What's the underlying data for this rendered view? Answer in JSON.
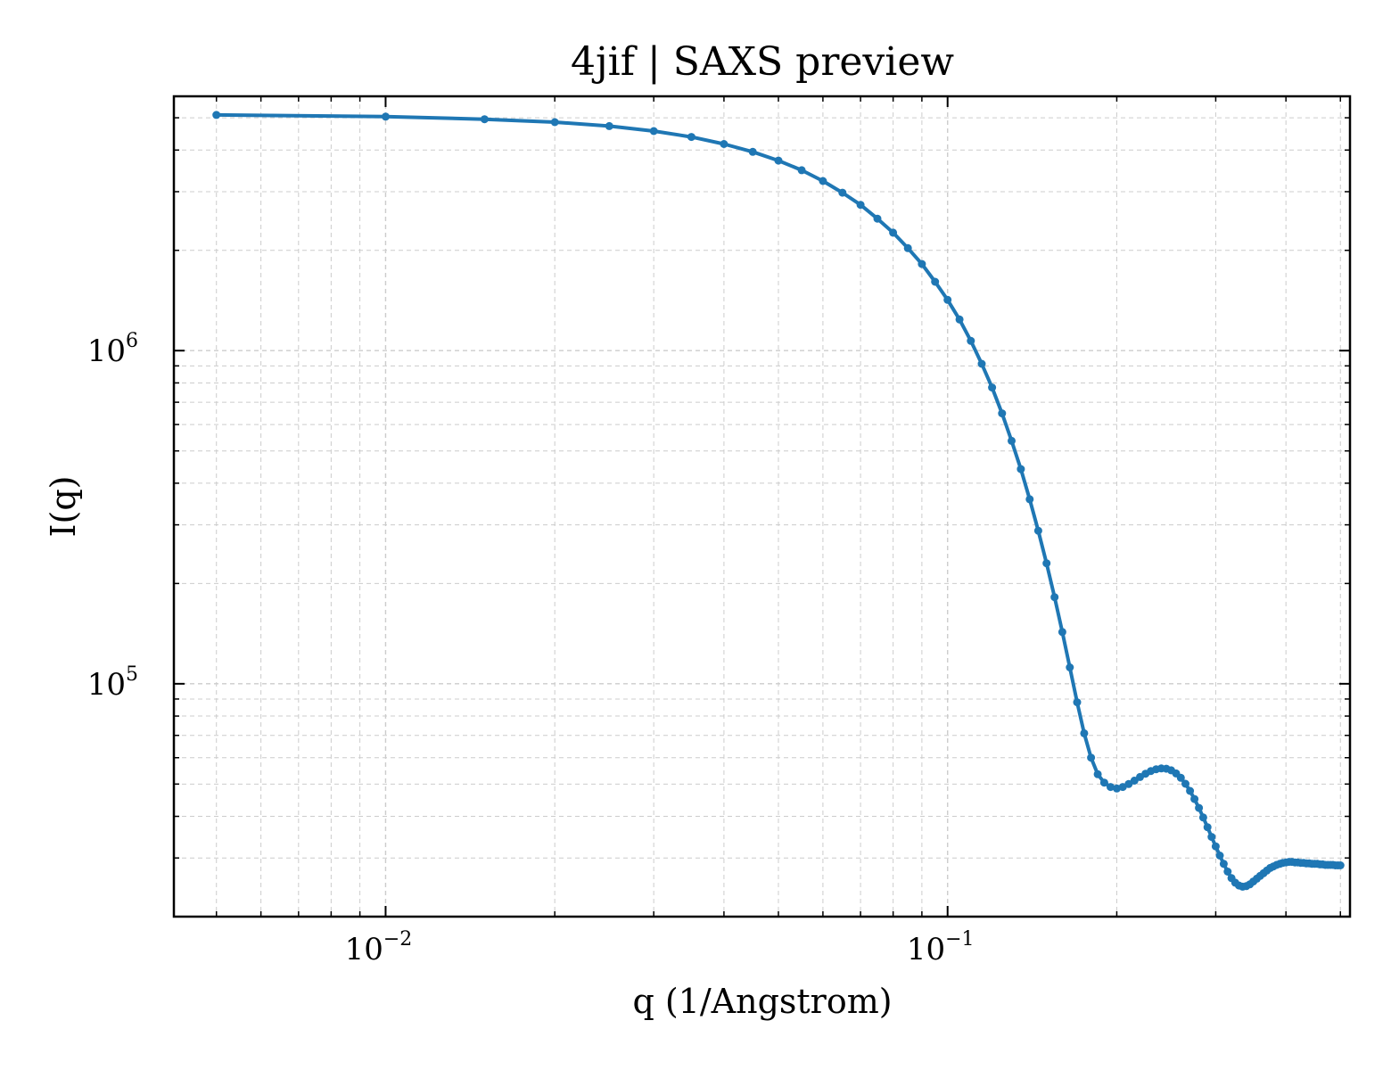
{
  "chart_data": {
    "type": "line",
    "title": "4jif | SAXS preview",
    "xlabel": "q (1/Angstrom)",
    "ylabel": "I(q)",
    "x_scale": "log",
    "y_scale": "log",
    "xlim": [
      0.0042,
      0.52
    ],
    "ylim": [
      20000,
      5800000
    ],
    "x_ticks": [
      {
        "value": 0.01,
        "base": "10",
        "exp": "−2"
      },
      {
        "value": 0.1,
        "base": "10",
        "exp": "−1"
      }
    ],
    "y_ticks": [
      {
        "value": 100000,
        "base": "10",
        "exp": "5"
      },
      {
        "value": 1000000,
        "base": "10",
        "exp": "6"
      }
    ],
    "grid": true,
    "legend": "none",
    "colors": {
      "line": "#1f77b4",
      "grid": "#cccccc",
      "axes": "#000000"
    },
    "series": [
      {
        "marker": "dot",
        "x": [
          0.005,
          0.01,
          0.015,
          0.02,
          0.025,
          0.03,
          0.035,
          0.04,
          0.045,
          0.05,
          0.055,
          0.06,
          0.065,
          0.07,
          0.075,
          0.08,
          0.085,
          0.09,
          0.095,
          0.1,
          0.105,
          0.11,
          0.115,
          0.12,
          0.125,
          0.13,
          0.135,
          0.14,
          0.145,
          0.15,
          0.155,
          0.16,
          0.165,
          0.17,
          0.175,
          0.18,
          0.185,
          0.19,
          0.195,
          0.2,
          0.205,
          0.21,
          0.215,
          0.22,
          0.225,
          0.23,
          0.235,
          0.24,
          0.245,
          0.25,
          0.255,
          0.26,
          0.265,
          0.27,
          0.275,
          0.28,
          0.285,
          0.29,
          0.295,
          0.3,
          0.305,
          0.31,
          0.315,
          0.32,
          0.325,
          0.33,
          0.335,
          0.34,
          0.345,
          0.35,
          0.355,
          0.36,
          0.365,
          0.37,
          0.375,
          0.38,
          0.385,
          0.39,
          0.395,
          0.4,
          0.405,
          0.41,
          0.415,
          0.42,
          0.425,
          0.43,
          0.435,
          0.44,
          0.445,
          0.45,
          0.455,
          0.46,
          0.465,
          0.47,
          0.475,
          0.48,
          0.485,
          0.49,
          0.495,
          0.5
        ],
        "y": [
          5100000,
          5040000,
          4950000,
          4850000,
          4720000,
          4560000,
          4380000,
          4170000,
          3950000,
          3720000,
          3480000,
          3230000,
          2980000,
          2740000,
          2490000,
          2260000,
          2030000,
          1820000,
          1610000,
          1420000,
          1240000,
          1070000,
          913000,
          775000,
          648000,
          536000,
          441000,
          358000,
          288000,
          230000,
          182000,
          143000,
          112000,
          88000,
          71000,
          60000,
          53500,
          50500,
          49000,
          48500,
          49000,
          50000,
          51200,
          52500,
          53700,
          54700,
          55400,
          55700,
          55600,
          55000,
          53800,
          52200,
          50100,
          47700,
          45100,
          42400,
          39700,
          37100,
          34700,
          32500,
          30500,
          28800,
          27300,
          26100,
          25300,
          24800,
          24600,
          24700,
          25000,
          25500,
          26000,
          26500,
          27000,
          27500,
          28000,
          28300,
          28600,
          28800,
          29000,
          29100,
          29200,
          29200,
          29100,
          29100,
          29000,
          29000,
          28900,
          28900,
          28800,
          28800,
          28800,
          28700,
          28700,
          28600,
          28600,
          28600,
          28600,
          28500,
          28500,
          28500
        ]
      }
    ]
  }
}
